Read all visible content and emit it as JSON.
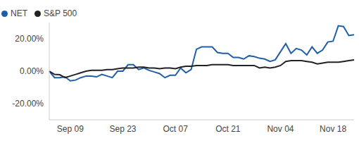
{
  "chart_data": {
    "type": "line",
    "categories": [
      null,
      null,
      null,
      null,
      "Sep 09",
      null,
      null,
      null,
      null,
      null,
      null,
      null,
      null,
      null,
      "Sep 23",
      null,
      null,
      null,
      null,
      null,
      null,
      null,
      null,
      null,
      "Oct 07",
      null,
      null,
      null,
      null,
      null,
      null,
      null,
      null,
      null,
      "Oct 21",
      null,
      null,
      null,
      null,
      null,
      null,
      null,
      null,
      null,
      "Nov 04",
      null,
      null,
      null,
      null,
      null,
      null,
      null,
      null,
      null,
      "Nov 18",
      null,
      null,
      null,
      null
    ],
    "series": [
      {
        "name": "NET",
        "color": "#1f5ea8",
        "values": [
          0,
          -4,
          -4,
          -3.5,
          -6,
          -5.5,
          -4,
          -3,
          -3,
          -3.5,
          -2,
          -3,
          -4,
          0,
          0,
          4,
          4,
          1,
          2,
          0.5,
          -0.5,
          -1.5,
          -4,
          -2.5,
          -2.5,
          2,
          -1,
          1,
          13.5,
          15,
          15,
          15,
          11.5,
          11,
          11,
          8.5,
          8.5,
          7.5,
          9.5,
          9,
          8,
          7.5,
          6,
          7,
          12,
          17,
          11,
          14,
          13,
          10,
          15,
          11,
          13,
          18,
          18.5,
          28,
          27.5,
          22,
          22.5
        ]
      },
      {
        "name": "S&P 500",
        "color": "#222222",
        "values": [
          0,
          -2,
          -2.2,
          -4,
          -3,
          -2,
          -1,
          0,
          0.5,
          0.5,
          0.5,
          1,
          1,
          1.5,
          2,
          2,
          2,
          2.5,
          2.5,
          2,
          2,
          1.5,
          2,
          2,
          1.5,
          2.5,
          3,
          3,
          3.5,
          3.5,
          3.5,
          4,
          4,
          4,
          4,
          3.5,
          3.5,
          3.5,
          3.5,
          3.5,
          2,
          2.5,
          2,
          2.5,
          3.5,
          6,
          6.5,
          6.5,
          6.5,
          6,
          5.5,
          4.5,
          5,
          5.5,
          5.5,
          5.5,
          6,
          6.5,
          7
        ]
      }
    ],
    "ylim": [
      -30,
      30
    ],
    "yticks": [
      {
        "value": -20,
        "label": "-20.00%"
      },
      {
        "value": 0,
        "label": "0.00%"
      },
      {
        "value": 20,
        "label": "20.00%"
      }
    ],
    "grid": false,
    "legend": "top left",
    "marker": "none"
  }
}
